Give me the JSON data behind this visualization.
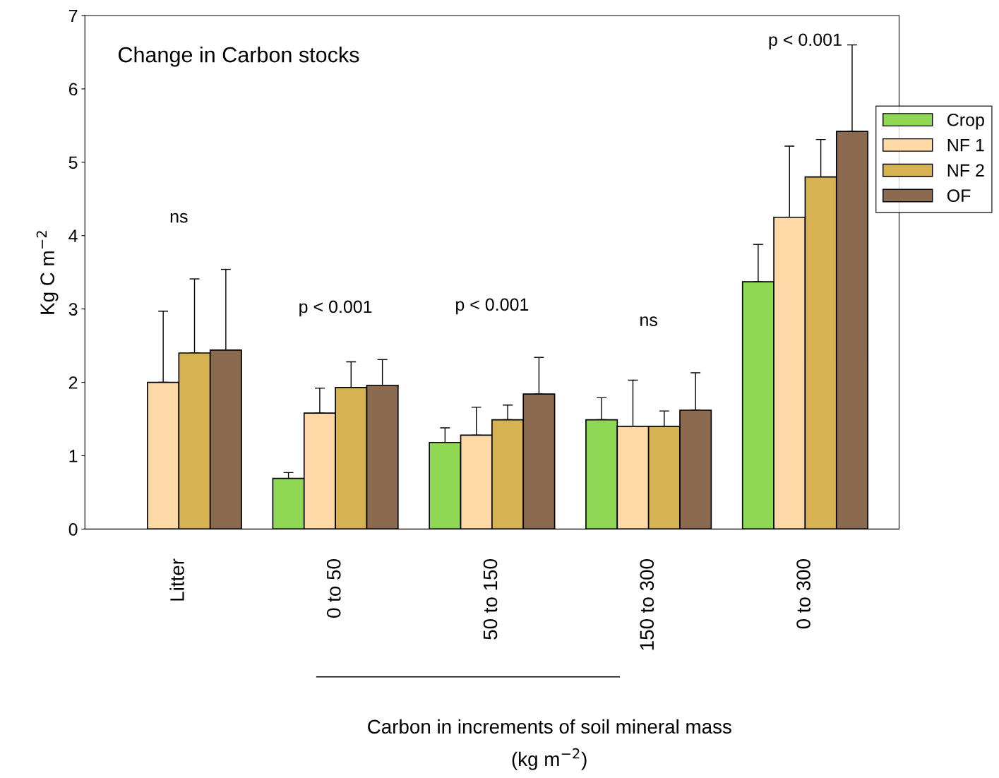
{
  "chart_data": {
    "type": "bar",
    "title": "Change in Carbon stocks",
    "xlabel": "Carbon in increments of soil mineral mass\n(kg m$^{−2}$)",
    "ylabel": "Kg C m$^{−2}$",
    "categories": [
      "Litter",
      "0 to 50",
      "50 to 150",
      "150 to 300",
      "0 to 300"
    ],
    "series": [
      {
        "name": "Crop",
        "color": "#8fd853",
        "values": [
          null,
          0.69,
          1.18,
          1.49,
          3.37
        ],
        "errors": [
          null,
          [
            0.69,
            0.77
          ],
          [
            1.18,
            1.38
          ],
          [
            1.49,
            1.79
          ],
          [
            3.37,
            3.88
          ]
        ]
      },
      {
        "name": "NF 1",
        "color": "#fdd9a5",
        "values": [
          2.0,
          1.58,
          1.28,
          1.4,
          4.25
        ],
        "errors": [
          [
            2.0,
            2.97
          ],
          [
            1.58,
            1.92
          ],
          [
            1.28,
            1.66
          ],
          [
            1.4,
            2.03
          ],
          [
            4.25,
            5.22
          ]
        ]
      },
      {
        "name": "NF 2",
        "color": "#d6b252",
        "values": [
          2.4,
          1.93,
          1.49,
          1.4,
          4.8
        ],
        "errors": [
          [
            2.4,
            3.41
          ],
          [
            1.93,
            2.28
          ],
          [
            1.49,
            1.69
          ],
          [
            1.4,
            1.61
          ],
          [
            4.8,
            5.31
          ]
        ]
      },
      {
        "name": "OF",
        "color": "#8c6a50",
        "values": [
          2.44,
          1.96,
          1.84,
          1.62,
          5.42
        ],
        "errors": [
          [
            2.44,
            3.54
          ],
          [
            1.96,
            2.31
          ],
          [
            1.84,
            2.34
          ],
          [
            1.62,
            2.13
          ],
          [
            5.42,
            6.6
          ]
        ]
      }
    ],
    "ylim": [
      0,
      7
    ],
    "yticks": [
      0,
      1,
      2,
      3,
      4,
      5,
      6,
      7
    ],
    "grid": false,
    "legend": "right",
    "annotations": [
      "ns",
      "p < 0.001",
      "p < 0.001",
      "ns",
      "p < 0.001"
    ]
  }
}
